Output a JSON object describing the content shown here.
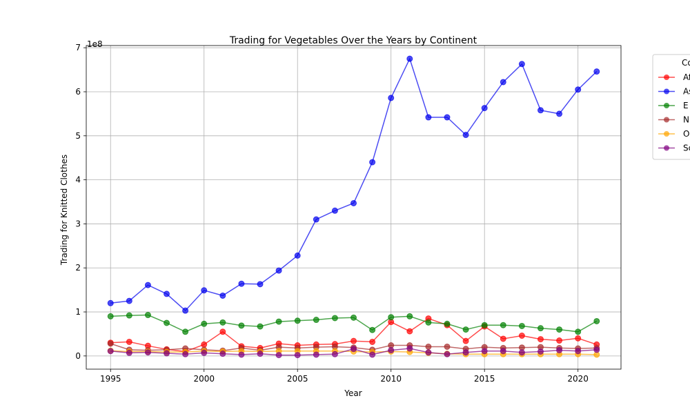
{
  "chart_data": {
    "type": "line",
    "title": "Trading for Vegetables Over the Years by Continent",
    "xlabel": "Year",
    "ylabel": "Trading for Knitted Clothes",
    "y_multiplier_label": "1e8",
    "xlim": [
      1993.7,
      2022.3
    ],
    "ylim": [
      -0.3,
      7.05
    ],
    "x_ticks": [
      1995,
      2000,
      2005,
      2010,
      2015,
      2020
    ],
    "y_ticks": [
      0,
      1,
      2,
      3,
      4,
      5,
      6,
      7
    ],
    "grid": true,
    "legend_title": "Co",
    "legend_placement": "outside-top-right (clipped)",
    "x": [
      1995,
      1996,
      1997,
      1998,
      1999,
      2000,
      2001,
      2002,
      2003,
      2004,
      2005,
      2006,
      2007,
      2008,
      2009,
      2010,
      2011,
      2012,
      2013,
      2014,
      2015,
      2016,
      2017,
      2018,
      2019,
      2020,
      2021
    ],
    "series": [
      {
        "name": "Af",
        "color": "#ff0000",
        "values": [
          0.3,
          0.32,
          0.23,
          0.15,
          0.1,
          0.26,
          0.55,
          0.22,
          0.18,
          0.28,
          0.24,
          0.26,
          0.27,
          0.34,
          0.32,
          0.77,
          0.56,
          0.85,
          0.7,
          0.34,
          0.67,
          0.39,
          0.46,
          0.38,
          0.35,
          0.4,
          0.26
        ]
      },
      {
        "name": "As",
        "color": "#0000ee",
        "values": [
          1.2,
          1.25,
          1.61,
          1.41,
          1.03,
          1.49,
          1.37,
          1.64,
          1.63,
          1.94,
          2.28,
          3.1,
          3.3,
          3.47,
          4.4,
          5.86,
          6.75,
          5.42,
          5.42,
          5.02,
          5.63,
          6.22,
          6.63,
          5.58,
          5.5,
          6.05,
          6.46
        ]
      },
      {
        "name": "E",
        "color": "#008000",
        "values": [
          0.9,
          0.92,
          0.93,
          0.75,
          0.55,
          0.73,
          0.76,
          0.69,
          0.67,
          0.78,
          0.8,
          0.82,
          0.86,
          0.87,
          0.59,
          0.88,
          0.9,
          0.76,
          0.73,
          0.6,
          0.7,
          0.7,
          0.68,
          0.63,
          0.6,
          0.55,
          0.79
        ]
      },
      {
        "name": "N",
        "color": "#a52a2a",
        "values": [
          0.28,
          0.14,
          0.13,
          0.14,
          0.17,
          0.14,
          0.12,
          0.18,
          0.13,
          0.2,
          0.18,
          0.2,
          0.21,
          0.19,
          0.14,
          0.24,
          0.24,
          0.21,
          0.21,
          0.16,
          0.2,
          0.18,
          0.19,
          0.2,
          0.18,
          0.17,
          0.18
        ]
      },
      {
        "name": "O",
        "color": "#ffa500",
        "values": [
          0.12,
          0.1,
          0.1,
          0.09,
          0.09,
          0.11,
          0.1,
          0.11,
          0.1,
          0.11,
          0.11,
          0.11,
          0.11,
          0.1,
          0.09,
          0.1,
          0.09,
          0.07,
          0.05,
          0.04,
          0.04,
          0.04,
          0.04,
          0.04,
          0.04,
          0.04,
          0.03
        ]
      },
      {
        "name": "Sc",
        "color": "#800080",
        "values": [
          0.11,
          0.07,
          0.08,
          0.06,
          0.04,
          0.07,
          0.05,
          0.03,
          0.05,
          0.02,
          0.02,
          0.03,
          0.04,
          0.16,
          0.03,
          0.13,
          0.17,
          0.08,
          0.04,
          0.08,
          0.11,
          0.11,
          0.08,
          0.1,
          0.13,
          0.11,
          0.14
        ]
      }
    ]
  }
}
